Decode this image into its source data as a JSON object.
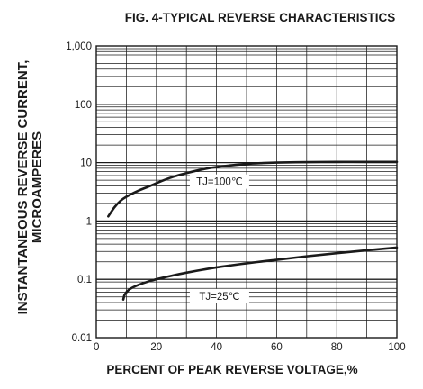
{
  "chart_data": {
    "type": "line",
    "title": "FIG. 4-TYPICAL REVERSE CHARACTERISTICS",
    "xlabel": "PERCENT OF PEAK REVERSE VOLTAGE,%",
    "ylabel_line1": "INSTANTANEOUS REVERSE CURRENT,",
    "ylabel_line2": "MICROAMPERES",
    "xlim": [
      0,
      100
    ],
    "ylim": [
      0.01,
      1000
    ],
    "yscale": "log",
    "grid": true,
    "x_ticks": [
      {
        "value": 0,
        "label": "0"
      },
      {
        "value": 20,
        "label": "20"
      },
      {
        "value": 40,
        "label": "40"
      },
      {
        "value": 60,
        "label": "60"
      },
      {
        "value": 80,
        "label": "80"
      },
      {
        "value": 100,
        "label": "100"
      }
    ],
    "y_ticks": [
      {
        "value": 1000,
        "label": "1,000"
      },
      {
        "value": 100,
        "label": "100"
      },
      {
        "value": 10,
        "label": "10"
      },
      {
        "value": 1,
        "label": "1"
      },
      {
        "value": 0.1,
        "label": "0.1"
      },
      {
        "value": 0.01,
        "label": "0.01"
      }
    ],
    "series": [
      {
        "annotation": "TJ=100℃",
        "annotation_at": {
          "x": 41,
          "y": 4.4
        },
        "x": [
          4,
          6,
          8,
          10,
          14,
          18,
          22,
          26,
          30,
          35,
          40,
          45,
          50,
          55,
          60,
          70,
          80,
          90,
          100
        ],
        "y": [
          1.2,
          1.7,
          2.2,
          2.6,
          3.3,
          4.0,
          4.9,
          5.8,
          6.6,
          7.6,
          8.4,
          9.0,
          9.5,
          9.8,
          10.0,
          10.2,
          10.3,
          10.3,
          10.3
        ]
      },
      {
        "annotation": "TJ=25℃",
        "annotation_at": {
          "x": 41,
          "y": 0.048
        },
        "x": [
          9,
          9.5,
          11,
          14,
          18,
          22,
          26,
          30,
          35,
          40,
          45,
          50,
          55,
          60,
          70,
          80,
          90,
          100
        ],
        "y": [
          0.045,
          0.055,
          0.067,
          0.08,
          0.094,
          0.106,
          0.118,
          0.13,
          0.145,
          0.16,
          0.174,
          0.188,
          0.202,
          0.216,
          0.248,
          0.28,
          0.315,
          0.35
        ]
      }
    ]
  }
}
